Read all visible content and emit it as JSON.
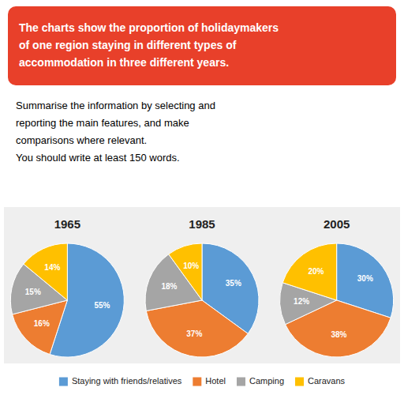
{
  "chart_data": {
    "type": "pie",
    "title": "The charts show the proportion of holidaymakers\nof one region staying in different types of\naccommodation in three different years.",
    "subtitle": "Summarise the information by selecting and\nreporting the main features, and make\ncomparisons where relevant.\nYou should write at least 150 words.",
    "categories": [
      "Staying with friends/relatives",
      "Hotel",
      "Camping",
      "Caravans"
    ],
    "colors": [
      "#5B9BD5",
      "#ED7D31",
      "#A5A5A5",
      "#FFC000"
    ],
    "series": [
      {
        "name": "1965",
        "values": [
          55,
          16,
          15,
          14
        ],
        "value_labels": [
          "55%",
          "16%",
          "15%",
          "14%"
        ]
      },
      {
        "name": "1985",
        "values": [
          35,
          37,
          18,
          10
        ],
        "value_labels": [
          "35%",
          "37%",
          "18%",
          "10%"
        ]
      },
      {
        "name": "2005",
        "values": [
          30,
          38,
          12,
          20
        ],
        "value_labels": [
          "30%",
          "38%",
          "12%",
          "20%"
        ]
      }
    ],
    "data_labels": true,
    "legend": "bottom"
  }
}
